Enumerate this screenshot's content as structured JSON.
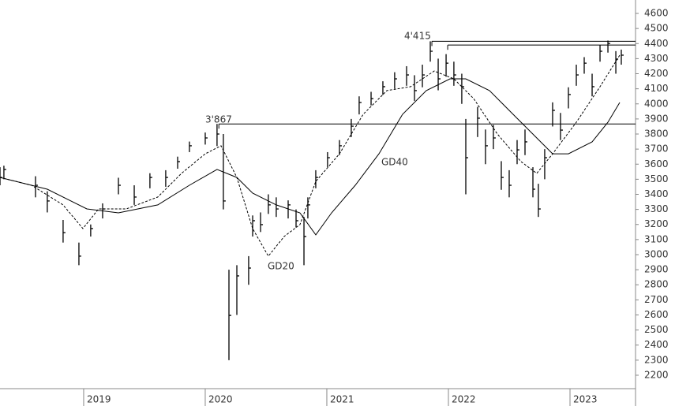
{
  "chart_data": {
    "type": "ohlc",
    "x": [
      2018.312,
      2018.344,
      2018.604,
      2018.701,
      2018.831,
      2018.961,
      2019.058,
      2019.156,
      2019.286,
      2019.416,
      2019.545,
      2019.675,
      2019.773,
      2019.87,
      2020.0,
      2020.097,
      2020.149,
      2020.195,
      2020.26,
      2020.357,
      2020.39,
      2020.455,
      2020.519,
      2020.584,
      2020.682,
      2020.747,
      2020.812,
      2020.844,
      2020.909,
      2021.006,
      2021.104,
      2021.201,
      2021.266,
      2021.364,
      2021.461,
      2021.558,
      2021.656,
      2021.721,
      2021.786,
      2021.851,
      2021.916,
      2021.981,
      2022.045,
      2022.11,
      2022.143,
      2022.24,
      2022.305,
      2022.37,
      2022.435,
      2022.5,
      2022.565,
      2022.63,
      2022.695,
      2022.74,
      2022.792,
      2022.857,
      2022.922,
      2022.987,
      2023.052,
      2023.117,
      2023.182,
      2023.247,
      2023.312,
      2023.377,
      2023.422
    ],
    "high": [
      3580,
      3590,
      3520,
      3420,
      3230,
      3080,
      3200,
      3340,
      3510,
      3460,
      3540,
      3560,
      3650,
      3750,
      3810,
      3867,
      3800,
      2900,
      2930,
      2990,
      3260,
      3280,
      3400,
      3380,
      3360,
      3300,
      3250,
      3380,
      3560,
      3680,
      3760,
      3900,
      4050,
      4080,
      4150,
      4210,
      4250,
      4190,
      4260,
      4415,
      4300,
      4330,
      4280,
      4200,
      3900,
      3980,
      3830,
      3860,
      3620,
      3560,
      3760,
      3830,
      3580,
      3470,
      3700,
      4010,
      3940,
      4110,
      4260,
      4310,
      4200,
      4390,
      4420,
      4350,
      4360
    ],
    "low": [
      3460,
      3500,
      3380,
      3280,
      3080,
      2930,
      3120,
      3240,
      3400,
      3330,
      3440,
      3450,
      3570,
      3680,
      3730,
      3720,
      3300,
      2300,
      2600,
      2800,
      3120,
      3150,
      3270,
      3250,
      3240,
      3180,
      2930,
      3240,
      3440,
      3580,
      3660,
      3780,
      3930,
      3990,
      4060,
      4100,
      4120,
      4020,
      4110,
      4280,
      4090,
      4180,
      4120,
      4000,
      3400,
      3780,
      3600,
      3700,
      3430,
      3380,
      3600,
      3660,
      3380,
      3250,
      3500,
      3850,
      3760,
      3970,
      4120,
      4200,
      4050,
      4280,
      4340,
      4200,
      4260
    ],
    "close": [
      3512,
      3565,
      3460,
      3356,
      3146,
      2990,
      3173,
      3303,
      3460,
      3382,
      3512,
      3512,
      3617,
      3722,
      3774,
      3800,
      3356,
      2597,
      2859,
      2911,
      3225,
      3199,
      3330,
      3303,
      3330,
      3225,
      3120,
      3330,
      3512,
      3643,
      3722,
      3852,
      4009,
      4035,
      4114,
      4166,
      4192,
      4088,
      4192,
      4349,
      4166,
      4270,
      4192,
      4114,
      3643,
      3905,
      3722,
      3774,
      3512,
      3460,
      3695,
      3748,
      3434,
      3303,
      3643,
      3957,
      3826,
      4062,
      4192,
      4270,
      4114,
      4349,
      4401,
      4297,
      4323
    ],
    "moving_averages": [
      {
        "name": "GD20",
        "dashed": true,
        "color": "#000000",
        "x": [
          2018.312,
          2018.571,
          2018.831,
          2018.994,
          2019.123,
          2019.351,
          2019.61,
          2019.805,
          2020.0,
          2020.13,
          2020.26,
          2020.39,
          2020.519,
          2020.649,
          2020.779,
          2020.909,
          2021.104,
          2021.299,
          2021.494,
          2021.688,
          2021.883,
          2022.045,
          2022.208,
          2022.403,
          2022.597,
          2022.727,
          2022.857,
          2023.052,
          2023.247,
          2023.409
        ],
        "values": [
          3512,
          3460,
          3330,
          3173,
          3303,
          3303,
          3382,
          3539,
          3669,
          3722,
          3512,
          3173,
          2990,
          3120,
          3199,
          3486,
          3669,
          3931,
          4088,
          4114,
          4218,
          4166,
          4035,
          3800,
          3617,
          3539,
          3669,
          3878,
          4114,
          4323
        ]
      },
      {
        "name": "GD40",
        "dashed": false,
        "color": "#000000",
        "x": [
          2018.312,
          2018.701,
          2019.026,
          2019.286,
          2019.61,
          2019.87,
          2020.097,
          2020.26,
          2020.39,
          2020.584,
          2020.779,
          2020.909,
          2021.039,
          2021.234,
          2021.429,
          2021.623,
          2021.818,
          2022.013,
          2022.143,
          2022.338,
          2022.532,
          2022.727,
          2022.857,
          2022.987,
          2023.182,
          2023.312,
          2023.409
        ],
        "values": [
          3512,
          3434,
          3303,
          3277,
          3330,
          3460,
          3565,
          3512,
          3408,
          3330,
          3277,
          3131,
          3277,
          3460,
          3669,
          3931,
          4088,
          4166,
          4166,
          4088,
          3931,
          3774,
          3669,
          3669,
          3748,
          3878,
          4009
        ]
      }
    ],
    "levels": [
      {
        "value": 3867,
        "label": "3'867",
        "from": 2020.112
      },
      {
        "value": 4415,
        "label": "4'415",
        "from": 2021.864
      },
      {
        "value": 4390,
        "from": 2021.994
      }
    ],
    "xlim": [
      2018.312,
      2023.539
    ],
    "xticks": [
      2019,
      2020,
      2021,
      2022,
      2023
    ],
    "ylim": [
      2111,
      4689
    ],
    "yticks": [
      2200,
      2300,
      2400,
      2500,
      2600,
      2700,
      2800,
      2900,
      3000,
      3100,
      3200,
      3300,
      3400,
      3500,
      3600,
      3700,
      3800,
      3900,
      4000,
      4100,
      4200,
      4300,
      4400,
      4500,
      4600
    ],
    "bar_color": "#000000"
  }
}
